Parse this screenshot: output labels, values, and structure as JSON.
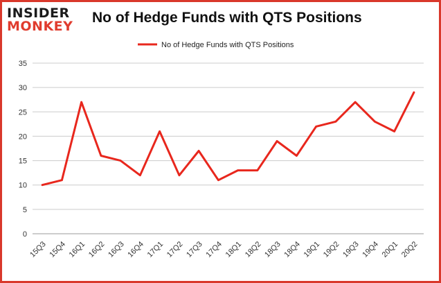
{
  "brand": {
    "line1": "INSIDER",
    "line2": "MONKEY"
  },
  "colors": {
    "accent": "#e8271d",
    "frame": "#d9382b",
    "grid": "#cccccc"
  },
  "chart_data": {
    "type": "line",
    "title": "No of Hedge Funds with QTS Positions",
    "xlabel": "",
    "ylabel": "",
    "ylim": [
      0,
      35
    ],
    "yticks": [
      0,
      5,
      10,
      15,
      20,
      25,
      30,
      35
    ],
    "grid": true,
    "legend_position": "top-center",
    "categories": [
      "15Q3",
      "15Q4",
      "16Q1",
      "16Q2",
      "16Q3",
      "16Q4",
      "17Q1",
      "17Q2",
      "17Q3",
      "17Q4",
      "18Q1",
      "18Q2",
      "18Q3",
      "18Q4",
      "19Q1",
      "19Q2",
      "19Q3",
      "19Q4",
      "20Q1",
      "20Q2"
    ],
    "series": [
      {
        "name": "No of Hedge Funds with QTS Positions",
        "color": "#e8271d",
        "values": [
          10,
          11,
          27,
          16,
          15,
          12,
          21,
          12,
          17,
          11,
          13,
          13,
          19,
          16,
          22,
          23,
          27,
          23,
          21,
          29
        ]
      }
    ]
  }
}
